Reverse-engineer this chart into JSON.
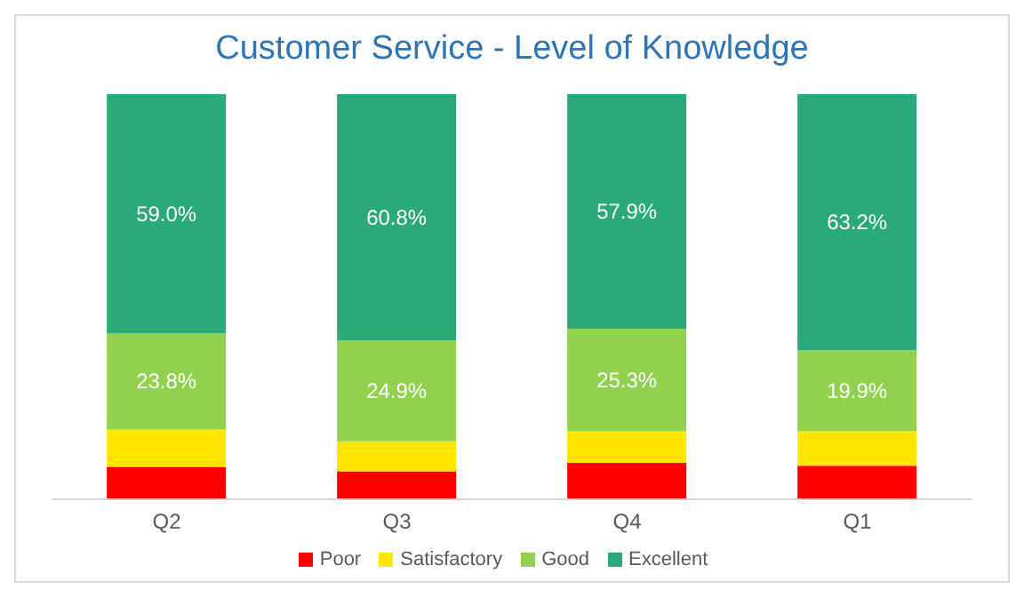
{
  "chart_data": {
    "type": "bar",
    "title": "Customer Service - Level of Knowledge",
    "categories": [
      "Q2",
      "Q3",
      "Q4",
      "Q1"
    ],
    "stacked": true,
    "ylim": [
      0,
      100
    ],
    "tick_labels": "x",
    "legend": "bottom",
    "grid": false,
    "series": [
      {
        "name": "Poor",
        "color": "#ff0000",
        "values": [
          8.0,
          6.9,
          9.0,
          8.3
        ]
      },
      {
        "name": "Satisfactory",
        "color": "#ffe600",
        "values": [
          9.2,
          7.4,
          7.8,
          8.6
        ]
      },
      {
        "name": "Good",
        "color": "#92d050",
        "values": [
          23.8,
          24.9,
          25.3,
          19.9
        ],
        "value_labels": [
          "23.8%",
          "24.9%",
          "25.3%",
          "19.9%"
        ]
      },
      {
        "name": "Excellent",
        "color": "#2aaa78",
        "values": [
          59.0,
          60.8,
          57.9,
          63.2
        ],
        "value_labels": [
          "59.0%",
          "60.8%",
          "57.9%",
          "63.2%"
        ]
      }
    ]
  }
}
